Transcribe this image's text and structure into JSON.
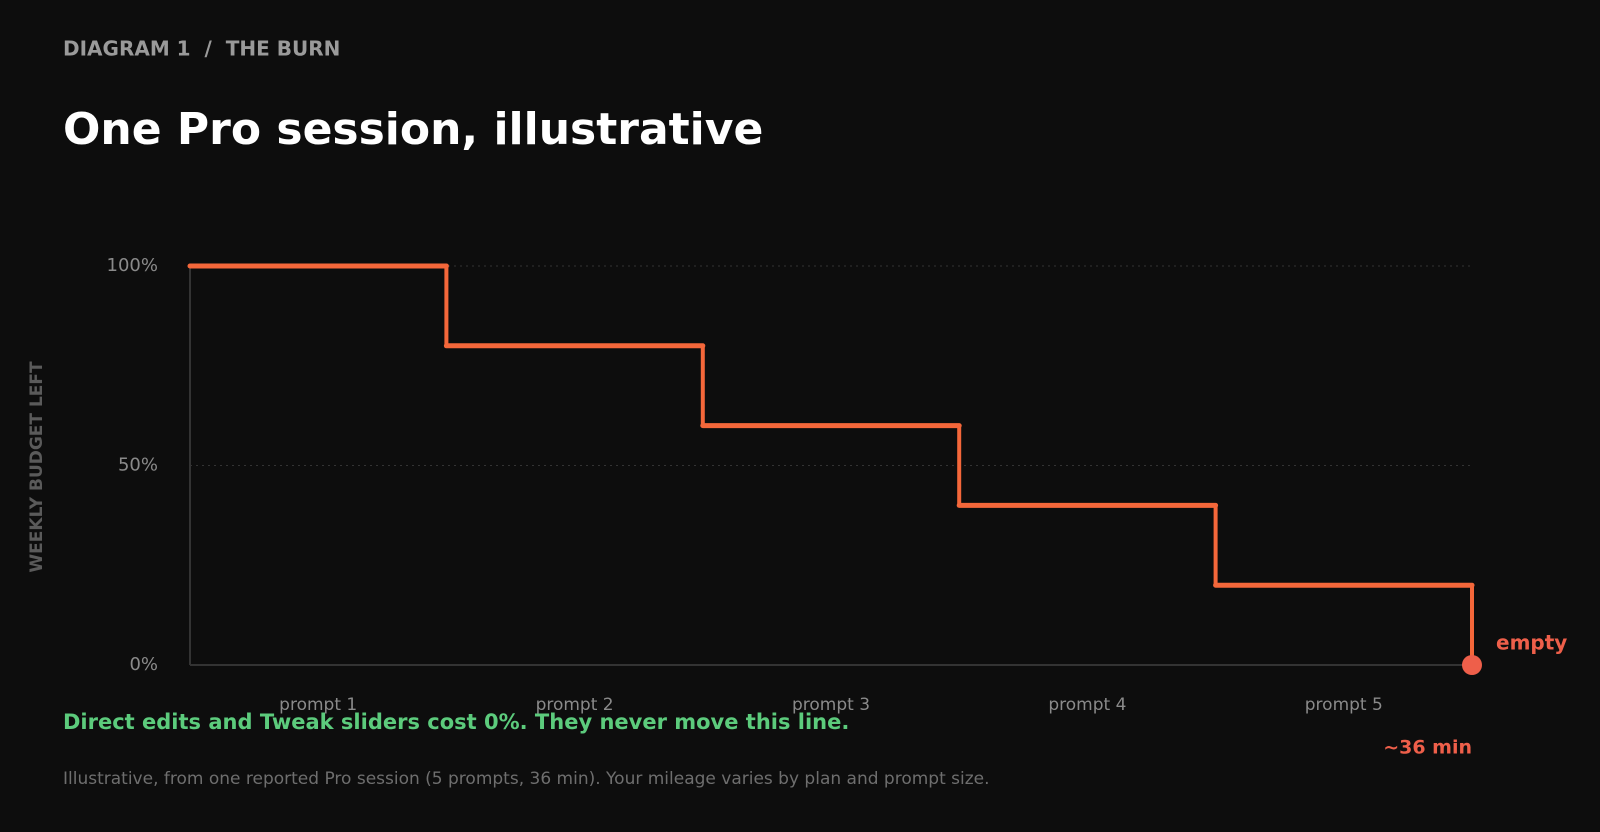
{
  "chart_data": {
    "type": "step",
    "eyebrow": "DIAGRAM 1  /  THE BURN",
    "title": "One Pro session, illustrative",
    "y_label": "WEEKLY BUDGET LEFT",
    "categories": [
      "prompt 1",
      "prompt 2",
      "prompt 3",
      "prompt 4",
      "prompt 5"
    ],
    "values": [
      100,
      80,
      60,
      40,
      20
    ],
    "end_value": 0,
    "end_label": "empty",
    "duration_label": "~36 min",
    "color": "#f4673a",
    "end_color": "#ee5f4a",
    "ylim": [
      0,
      100
    ],
    "yticks": [
      {
        "value": 0,
        "label": "0%"
      },
      {
        "value": 50,
        "label": "50%"
      },
      {
        "value": 100,
        "label": "100%"
      }
    ],
    "grid": true,
    "note": "Direct edits and Tweak sliders cost 0%. They never move this line.",
    "footnote": "Illustrative, from one reported Pro session (5 prompts, 36 min). Your mileage varies by plan and prompt size."
  }
}
